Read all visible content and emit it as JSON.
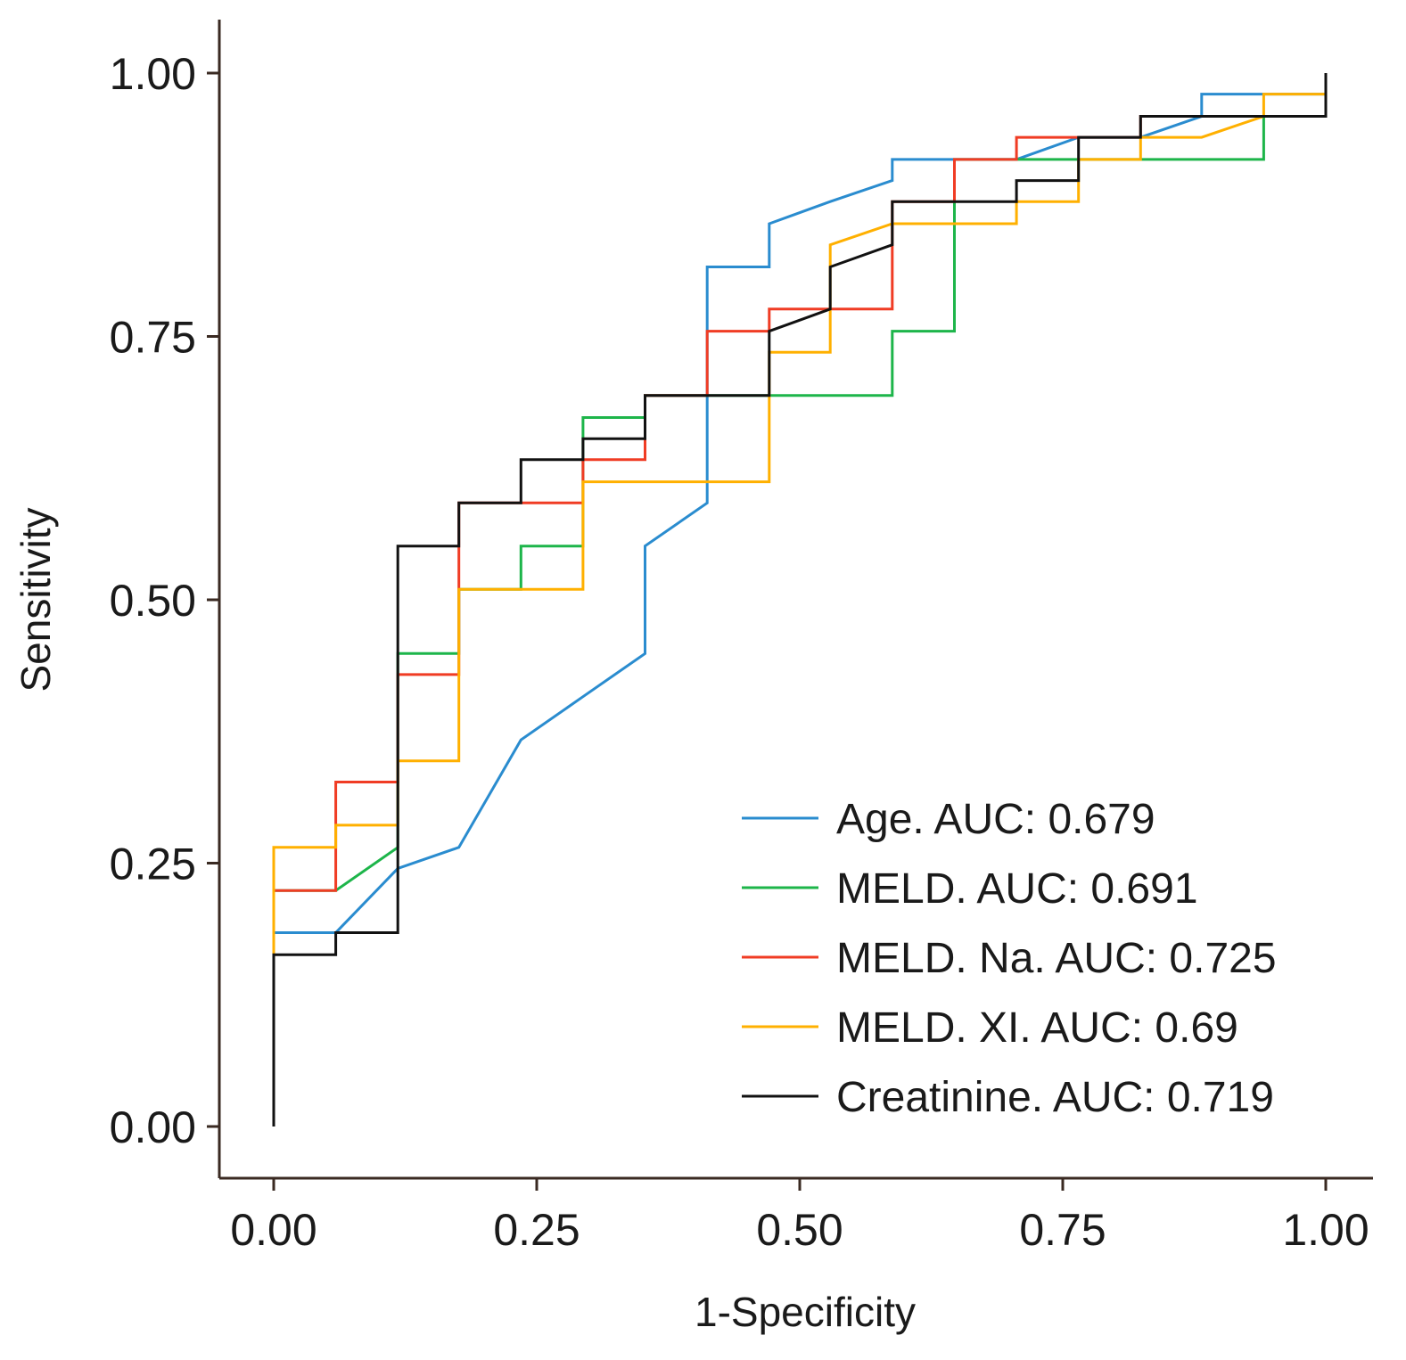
{
  "chart_data": {
    "type": "line",
    "title": "",
    "xlabel": "1-Specificity",
    "ylabel": "Sensitivity",
    "xlim": [
      0,
      1
    ],
    "ylim": [
      0,
      1
    ],
    "xticks": [
      0,
      0.25,
      0.5,
      0.75,
      1
    ],
    "yticks": [
      0,
      0.25,
      0.5,
      0.75,
      1
    ],
    "xtick_labels": [
      "0.00",
      "0.25",
      "0.50",
      "0.75",
      "1.00"
    ],
    "ytick_labels": [
      "0.00",
      "0.25",
      "0.50",
      "0.75",
      "1.00"
    ],
    "grid": false,
    "legend_position": "bottom-right",
    "series": [
      {
        "name": "Age. AUC: 0.679",
        "color": "#2a8ccf",
        "points": [
          [
            0,
            0
          ],
          [
            0,
            0.184
          ],
          [
            0.059,
            0.184
          ],
          [
            0.118,
            0.245
          ],
          [
            0.176,
            0.265
          ],
          [
            0.235,
            0.367
          ],
          [
            0.294,
            0.408
          ],
          [
            0.353,
            0.449
          ],
          [
            0.353,
            0.551
          ],
          [
            0.412,
            0.592
          ],
          [
            0.412,
            0.816
          ],
          [
            0.471,
            0.816
          ],
          [
            0.471,
            0.857
          ],
          [
            0.529,
            0.878
          ],
          [
            0.588,
            0.898
          ],
          [
            0.588,
            0.918
          ],
          [
            0.647,
            0.918
          ],
          [
            0.706,
            0.918
          ],
          [
            0.765,
            0.939
          ],
          [
            0.824,
            0.939
          ],
          [
            0.882,
            0.959
          ],
          [
            0.882,
            0.98
          ],
          [
            0.941,
            0.98
          ],
          [
            1,
            0.98
          ],
          [
            1,
            1
          ]
        ]
      },
      {
        "name": "MELD. AUC: 0.691",
        "color": "#1db54a",
        "points": [
          [
            0,
            0
          ],
          [
            0,
            0.224
          ],
          [
            0.059,
            0.224
          ],
          [
            0.118,
            0.265
          ],
          [
            0.118,
            0.449
          ],
          [
            0.176,
            0.449
          ],
          [
            0.176,
            0.51
          ],
          [
            0.235,
            0.51
          ],
          [
            0.235,
            0.551
          ],
          [
            0.294,
            0.551
          ],
          [
            0.294,
            0.673
          ],
          [
            0.353,
            0.673
          ],
          [
            0.353,
            0.694
          ],
          [
            0.412,
            0.694
          ],
          [
            0.471,
            0.694
          ],
          [
            0.588,
            0.694
          ],
          [
            0.588,
            0.755
          ],
          [
            0.647,
            0.755
          ],
          [
            0.647,
            0.918
          ],
          [
            0.706,
            0.918
          ],
          [
            0.765,
            0.918
          ],
          [
            0.941,
            0.918
          ],
          [
            0.941,
            0.959
          ],
          [
            1,
            0.959
          ],
          [
            1,
            1
          ]
        ]
      },
      {
        "name": "MELD. Na. AUC: 0.725",
        "color": "#f03c24",
        "points": [
          [
            0,
            0
          ],
          [
            0,
            0.224
          ],
          [
            0.059,
            0.224
          ],
          [
            0.059,
            0.327
          ],
          [
            0.118,
            0.327
          ],
          [
            0.118,
            0.429
          ],
          [
            0.176,
            0.429
          ],
          [
            0.176,
            0.551
          ],
          [
            0.176,
            0.592
          ],
          [
            0.294,
            0.592
          ],
          [
            0.294,
            0.633
          ],
          [
            0.353,
            0.633
          ],
          [
            0.353,
            0.694
          ],
          [
            0.412,
            0.694
          ],
          [
            0.412,
            0.755
          ],
          [
            0.471,
            0.755
          ],
          [
            0.471,
            0.776
          ],
          [
            0.588,
            0.776
          ],
          [
            0.588,
            0.878
          ],
          [
            0.647,
            0.878
          ],
          [
            0.647,
            0.918
          ],
          [
            0.706,
            0.918
          ],
          [
            0.706,
            0.939
          ],
          [
            0.765,
            0.939
          ],
          [
            0.824,
            0.939
          ],
          [
            0.824,
            0.959
          ],
          [
            1,
            0.959
          ],
          [
            1,
            1
          ]
        ]
      },
      {
        "name": "MELD. XI. AUC: 0.69",
        "color": "#ffb000",
        "points": [
          [
            0,
            0
          ],
          [
            0,
            0.265
          ],
          [
            0.059,
            0.265
          ],
          [
            0.059,
            0.286
          ],
          [
            0.118,
            0.286
          ],
          [
            0.118,
            0.347
          ],
          [
            0.176,
            0.347
          ],
          [
            0.176,
            0.51
          ],
          [
            0.235,
            0.51
          ],
          [
            0.294,
            0.51
          ],
          [
            0.294,
            0.612
          ],
          [
            0.353,
            0.612
          ],
          [
            0.471,
            0.612
          ],
          [
            0.471,
            0.735
          ],
          [
            0.529,
            0.735
          ],
          [
            0.529,
            0.837
          ],
          [
            0.588,
            0.857
          ],
          [
            0.706,
            0.857
          ],
          [
            0.706,
            0.878
          ],
          [
            0.765,
            0.878
          ],
          [
            0.765,
            0.918
          ],
          [
            0.824,
            0.918
          ],
          [
            0.824,
            0.939
          ],
          [
            0.882,
            0.939
          ],
          [
            0.941,
            0.959
          ],
          [
            0.941,
            0.98
          ],
          [
            1,
            0.98
          ],
          [
            1,
            1
          ]
        ]
      },
      {
        "name": "Creatinine. AUC: 0.719",
        "color": "#111111",
        "points": [
          [
            0,
            0
          ],
          [
            0,
            0.163
          ],
          [
            0.059,
            0.163
          ],
          [
            0.059,
            0.184
          ],
          [
            0.118,
            0.184
          ],
          [
            0.118,
            0.551
          ],
          [
            0.176,
            0.551
          ],
          [
            0.176,
            0.592
          ],
          [
            0.235,
            0.592
          ],
          [
            0.235,
            0.633
          ],
          [
            0.294,
            0.633
          ],
          [
            0.294,
            0.653
          ],
          [
            0.353,
            0.653
          ],
          [
            0.353,
            0.694
          ],
          [
            0.412,
            0.694
          ],
          [
            0.471,
            0.694
          ],
          [
            0.471,
            0.755
          ],
          [
            0.529,
            0.776
          ],
          [
            0.529,
            0.816
          ],
          [
            0.588,
            0.837
          ],
          [
            0.588,
            0.878
          ],
          [
            0.647,
            0.878
          ],
          [
            0.706,
            0.878
          ],
          [
            0.706,
            0.898
          ],
          [
            0.765,
            0.898
          ],
          [
            0.765,
            0.939
          ],
          [
            0.824,
            0.939
          ],
          [
            0.824,
            0.959
          ],
          [
            0.882,
            0.959
          ],
          [
            1,
            0.959
          ],
          [
            1,
            1
          ]
        ]
      }
    ]
  }
}
